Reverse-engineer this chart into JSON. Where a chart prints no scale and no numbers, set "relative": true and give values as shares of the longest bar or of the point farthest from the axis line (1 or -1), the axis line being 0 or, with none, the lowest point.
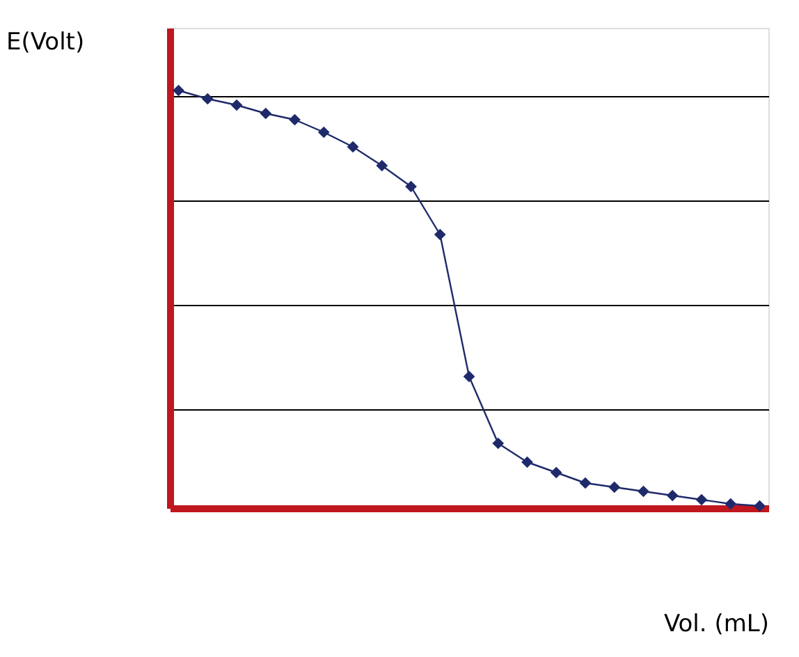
{
  "chart_data": {
    "type": "line",
    "relative": true,
    "xlabel": "Vol. (mL)",
    "ylabel": "E(Volt)",
    "categories": [
      null,
      null,
      null,
      null,
      null,
      null,
      null,
      null,
      null,
      null,
      null,
      null,
      null,
      null,
      null,
      null,
      null,
      null,
      null,
      null,
      null
    ],
    "series": [
      {
        "color": "#1f2a6b",
        "values": [
          1.0,
          0.98,
          0.965,
          0.945,
          0.93,
          0.9,
          0.865,
          0.82,
          0.77,
          0.655,
          0.315,
          0.155,
          0.11,
          0.085,
          0.06,
          0.05,
          0.04,
          0.03,
          0.02,
          0.01,
          0.005
        ]
      }
    ],
    "marker": "diamond",
    "line_style": "solid",
    "grid": "y"
  }
}
